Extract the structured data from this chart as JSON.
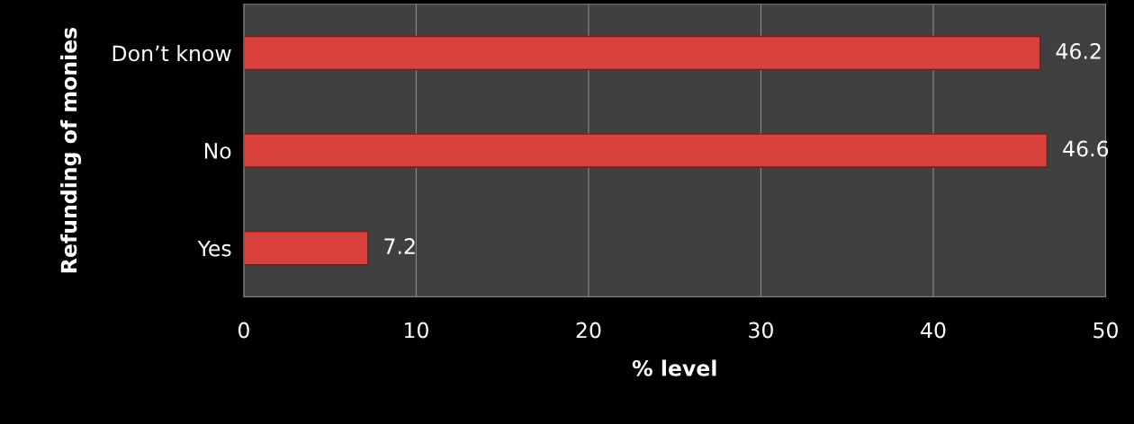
{
  "chart_data": {
    "type": "bar",
    "orientation": "horizontal",
    "categories": [
      "Don’t know",
      "No",
      "Yes"
    ],
    "values": [
      46.2,
      46.6,
      7.2
    ],
    "color": "#d9413c",
    "xlabel": "% level",
    "ylabel": "Refunding of monies",
    "xlim": [
      0,
      50
    ],
    "xticks": [
      0,
      10,
      20,
      30,
      40,
      50
    ],
    "grid": "x",
    "data_labels": true
  }
}
